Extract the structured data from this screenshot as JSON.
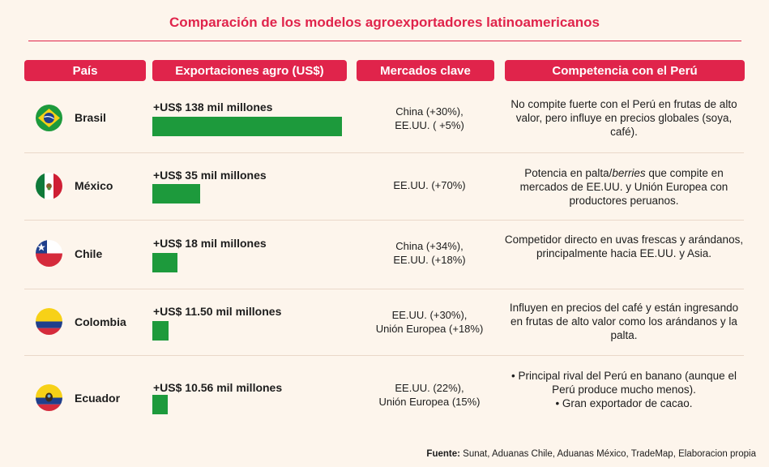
{
  "title": "Comparación de los modelos agroexportadores latinoamericanos",
  "headers": {
    "pais": "País",
    "exportaciones": "Exportaciones agro (US$)",
    "mercados": "Mercados clave",
    "competencia": "Competencia con el Perú"
  },
  "rows": [
    {
      "country": "Brasil",
      "flag_icon": "brazil-flag-icon",
      "amount_label": "+US$ 138 mil millones",
      "markets_line1": "China (+30%),",
      "markets_line2": "EE.UU. ( +5%)",
      "competition": "No compite fuerte con el Perú en frutas de alto valor, pero influye en precios globales (soya, café)."
    },
    {
      "country": "México",
      "flag_icon": "mexico-flag-icon",
      "amount_label": "+US$ 35 mil millones",
      "markets_line1": "EE.UU. (+70%)",
      "markets_line2": "",
      "competition_pre": "Potencia en palta/",
      "competition_em": "berries",
      "competition_post": " que compite en mercados de EE.UU. y Unión Europea con productores peruanos."
    },
    {
      "country": "Chile",
      "flag_icon": "chile-flag-icon",
      "amount_label": "+US$ 18 mil millones",
      "markets_line1": "China (+34%),",
      "markets_line2": "EE.UU. (+18%)",
      "competition": "Competidor directo en uvas frescas y arándanos, principalmente hacia EE.UU. y Asia."
    },
    {
      "country": "Colombia",
      "flag_icon": "colombia-flag-icon",
      "amount_label": "+US$ 11.50 mil millones",
      "markets_line1": "EE.UU. (+30%),",
      "markets_line2": "Unión Europea (+18%)",
      "competition": "Influyen en precios del café y están ingresando en frutas de alto valor como los arándanos y la palta."
    },
    {
      "country": "Ecuador",
      "flag_icon": "ecuador-flag-icon",
      "amount_label": "+US$ 10.56 mil millones",
      "markets_line1": "EE.UU. (22%),",
      "markets_line2": "Unión Europea (15%)",
      "competition_bullet1": "• Principal rival del Perú en banano (aunque el Perú produce mucho menos).",
      "competition_bullet2": "• Gran exportador de cacao."
    }
  ],
  "source_label": "Fuente:",
  "source_text": " Sunat, Aduanas Chile, Aduanas México, TradeMap, Elaboracion propia",
  "colors": {
    "accent": "#e0244b",
    "bar": "#1d9a3c",
    "background": "#fdf5ec"
  },
  "chart_data": {
    "type": "bar",
    "title": "Comparación de los modelos agroexportadores latinoamericanos",
    "categories": [
      "Brasil",
      "México",
      "Chile",
      "Colombia",
      "Ecuador"
    ],
    "values": [
      138,
      35,
      18,
      11.5,
      10.56
    ],
    "unit": "mil millones US$",
    "orientation": "horizontal"
  }
}
